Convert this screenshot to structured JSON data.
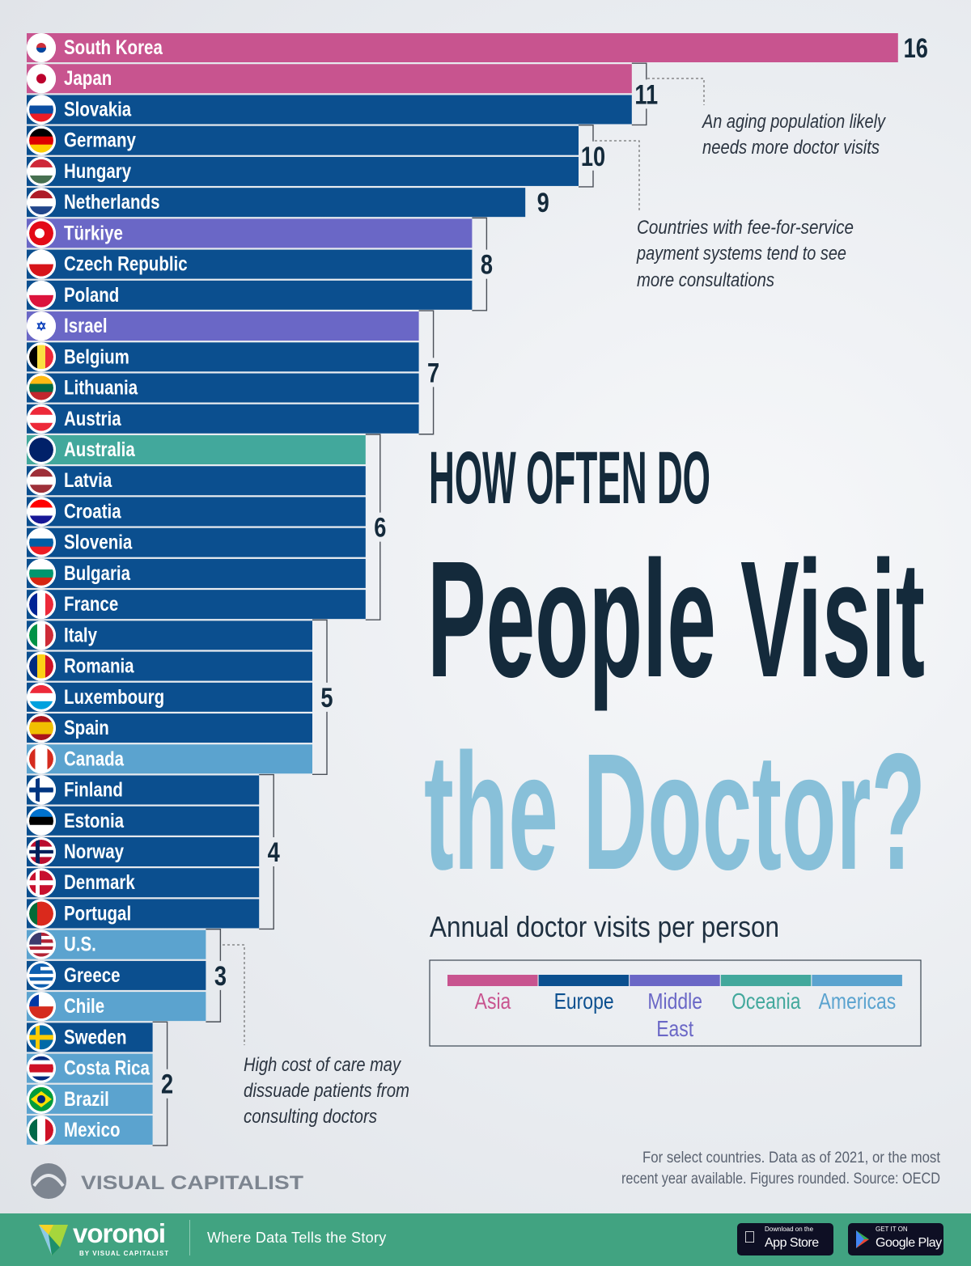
{
  "title": {
    "line1": "HOW OFTEN DO",
    "line2": "People Visit",
    "line3": "the Doctor?"
  },
  "subtitle": "Annual doctor visits per person",
  "annotations": [
    {
      "lines": [
        "An aging population likely",
        "needs more doctor visits"
      ]
    },
    {
      "lines": [
        "Countries with fee-for-service",
        "payment systems tend to see",
        "more consultations"
      ]
    },
    {
      "lines": [
        "High cost of care may",
        "dissuade patients from",
        "consulting doctors"
      ]
    }
  ],
  "source": {
    "lines": [
      "For select countries.  Data as of 2021, or the most",
      "recent year available. Figures rounded. Source: OECD"
    ]
  },
  "brand": {
    "name": "VISUAL CAPITALIST"
  },
  "footer": {
    "logo": "voronoi",
    "by": "BY VISUAL CAPITALIST",
    "tagline": "Where Data Tells the Story",
    "app_store_small": "Download on the",
    "app_store_big": "App Store",
    "google_small": "GET IT ON",
    "google_big": "Google Play"
  },
  "chart_data": {
    "type": "bar",
    "orientation": "horizontal",
    "unit": "Annual doctor visits per person",
    "legend": [
      {
        "label": "Asia",
        "color": "#c8548f"
      },
      {
        "label": "Europe",
        "color": "#0b4f8f"
      },
      {
        "label": "Middle East",
        "color": "#6a67c6"
      },
      {
        "label": "Oceania",
        "color": "#42a89c"
      },
      {
        "label": "Americas",
        "color": "#5ba3cf"
      }
    ],
    "legend_placement": "bottom-right",
    "rows": [
      {
        "country": "South Korea",
        "value": 16,
        "region": "Asia",
        "flag": "south-korea-flag-icon"
      },
      {
        "country": "Japan",
        "value": 11,
        "region": "Asia",
        "flag": "japan-flag-icon"
      },
      {
        "country": "Slovakia",
        "value": 11,
        "region": "Europe",
        "flag": "slovakia-flag-icon"
      },
      {
        "country": "Germany",
        "value": 10,
        "region": "Europe",
        "flag": "germany-flag-icon"
      },
      {
        "country": "Hungary",
        "value": 10,
        "region": "Europe",
        "flag": "hungary-flag-icon"
      },
      {
        "country": "Netherlands",
        "value": 9,
        "region": "Europe",
        "flag": "netherlands-flag-icon"
      },
      {
        "country": "Türkiye",
        "value": 8,
        "region": "Middle East",
        "flag": "turkiye-flag-icon"
      },
      {
        "country": "Czech Republic",
        "value": 8,
        "region": "Europe",
        "flag": "czech-flag-icon"
      },
      {
        "country": "Poland",
        "value": 8,
        "region": "Europe",
        "flag": "poland-flag-icon"
      },
      {
        "country": "Israel",
        "value": 7,
        "region": "Middle East",
        "flag": "israel-flag-icon"
      },
      {
        "country": "Belgium",
        "value": 7,
        "region": "Europe",
        "flag": "belgium-flag-icon"
      },
      {
        "country": "Lithuania",
        "value": 7,
        "region": "Europe",
        "flag": "lithuania-flag-icon"
      },
      {
        "country": "Austria",
        "value": 7,
        "region": "Europe",
        "flag": "austria-flag-icon"
      },
      {
        "country": "Australia",
        "value": 6,
        "region": "Oceania",
        "flag": "australia-flag-icon"
      },
      {
        "country": "Latvia",
        "value": 6,
        "region": "Europe",
        "flag": "latvia-flag-icon"
      },
      {
        "country": "Croatia",
        "value": 6,
        "region": "Europe",
        "flag": "croatia-flag-icon"
      },
      {
        "country": "Slovenia",
        "value": 6,
        "region": "Europe",
        "flag": "slovenia-flag-icon"
      },
      {
        "country": "Bulgaria",
        "value": 6,
        "region": "Europe",
        "flag": "bulgaria-flag-icon"
      },
      {
        "country": "France",
        "value": 6,
        "region": "Europe",
        "flag": "france-flag-icon"
      },
      {
        "country": "Italy",
        "value": 5,
        "region": "Europe",
        "flag": "italy-flag-icon"
      },
      {
        "country": "Romania",
        "value": 5,
        "region": "Europe",
        "flag": "romania-flag-icon"
      },
      {
        "country": "Luxembourg",
        "value": 5,
        "region": "Europe",
        "flag": "luxembourg-flag-icon"
      },
      {
        "country": "Spain",
        "value": 5,
        "region": "Europe",
        "flag": "spain-flag-icon"
      },
      {
        "country": "Canada",
        "value": 5,
        "region": "Americas",
        "flag": "canada-flag-icon"
      },
      {
        "country": "Finland",
        "value": 4,
        "region": "Europe",
        "flag": "finland-flag-icon"
      },
      {
        "country": "Estonia",
        "value": 4,
        "region": "Europe",
        "flag": "estonia-flag-icon"
      },
      {
        "country": "Norway",
        "value": 4,
        "region": "Europe",
        "flag": "norway-flag-icon"
      },
      {
        "country": "Denmark",
        "value": 4,
        "region": "Europe",
        "flag": "denmark-flag-icon"
      },
      {
        "country": "Portugal",
        "value": 4,
        "region": "Europe",
        "flag": "portugal-flag-icon"
      },
      {
        "country": "U.S.",
        "value": 3,
        "region": "Americas",
        "flag": "us-flag-icon"
      },
      {
        "country": "Greece",
        "value": 3,
        "region": "Europe",
        "flag": "greece-flag-icon"
      },
      {
        "country": "Chile",
        "value": 3,
        "region": "Americas",
        "flag": "chile-flag-icon"
      },
      {
        "country": "Sweden",
        "value": 2,
        "region": "Europe",
        "flag": "sweden-flag-icon"
      },
      {
        "country": "Costa Rica",
        "value": 2,
        "region": "Americas",
        "flag": "costa-rica-flag-icon"
      },
      {
        "country": "Brazil",
        "value": 2,
        "region": "Americas",
        "flag": "brazil-flag-icon"
      },
      {
        "country": "Mexico",
        "value": 2,
        "region": "Americas",
        "flag": "mexico-flag-icon"
      }
    ]
  }
}
